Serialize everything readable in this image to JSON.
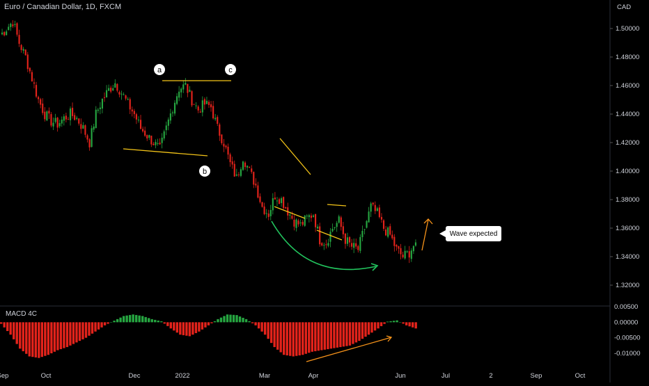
{
  "header": {
    "title": "Euro / Canadian Dollar, 1D, FXCM"
  },
  "price_axis": {
    "unit": "CAD"
  },
  "macd": {
    "label": "MACD 4C"
  },
  "annotation": {
    "callout": "Wave expected",
    "wave_labels": [
      "a",
      "c",
      "b"
    ]
  },
  "colors": {
    "up": "#26a641",
    "down": "#e3231b",
    "trendline": "#f5c518",
    "curve_arrow": "#22c55e",
    "arrow_orange": "#f7931a",
    "background": "#000000"
  },
  "chart_data": [
    {
      "type": "candlestick",
      "title": "Euro / Canadian Dollar, 1D, FXCM",
      "ylabel": "CAD",
      "ylim": [
        1.31,
        1.51
      ],
      "yticks": [
        "1.50000",
        "1.48000",
        "1.46000",
        "1.44000",
        "1.42000",
        "1.40000",
        "1.38000",
        "1.36000",
        "1.34000",
        "1.32000"
      ],
      "xticks": [
        "Sep",
        "Oct",
        "Dec",
        "2022",
        "Mar",
        "Apr",
        "Jun",
        "Jul",
        "2",
        "Sep",
        "Oct"
      ],
      "approx_closes": [
        1.495,
        1.5,
        1.505,
        1.49,
        1.48,
        1.465,
        1.45,
        1.44,
        1.435,
        1.433,
        1.437,
        1.44,
        1.437,
        1.43,
        1.42,
        1.44,
        1.45,
        1.457,
        1.462,
        1.455,
        1.447,
        1.44,
        1.43,
        1.425,
        1.42,
        1.415,
        1.43,
        1.445,
        1.458,
        1.46,
        1.45,
        1.443,
        1.447,
        1.445,
        1.43,
        1.42,
        1.405,
        1.395,
        1.41,
        1.4,
        1.39,
        1.375,
        1.37,
        1.383,
        1.38,
        1.372,
        1.365,
        1.362,
        1.367,
        1.37,
        1.352,
        1.35,
        1.36,
        1.365,
        1.352,
        1.347,
        1.345,
        1.36,
        1.375,
        1.37,
        1.36,
        1.355,
        1.345,
        1.34,
        1.343,
        1.35
      ],
      "annotations": [
        "a",
        "b",
        "c",
        "Wave expected"
      ]
    },
    {
      "type": "bar",
      "title": "MACD 4C",
      "ylim": [
        -0.012,
        0.006
      ],
      "yticks": [
        "0.00500",
        "0.00000",
        "-0.00500",
        "-0.01000"
      ],
      "approx_values": [
        -0.0005,
        -0.004,
        -0.0085,
        -0.011,
        -0.0115,
        -0.0105,
        -0.009,
        -0.008,
        -0.0065,
        -0.005,
        -0.003,
        -0.001,
        0.0005,
        0.002,
        0.0025,
        0.002,
        0.001,
        0.0003,
        -0.002,
        -0.004,
        -0.0045,
        -0.003,
        -0.001,
        0.001,
        0.0025,
        0.0023,
        0.001,
        -0.001,
        -0.004,
        -0.008,
        -0.0105,
        -0.011,
        -0.0105,
        -0.0095,
        -0.009,
        -0.0085,
        -0.008,
        -0.0075,
        -0.006,
        -0.004,
        -0.002,
        0.0002,
        0.0006,
        -0.001,
        -0.002
      ]
    }
  ]
}
